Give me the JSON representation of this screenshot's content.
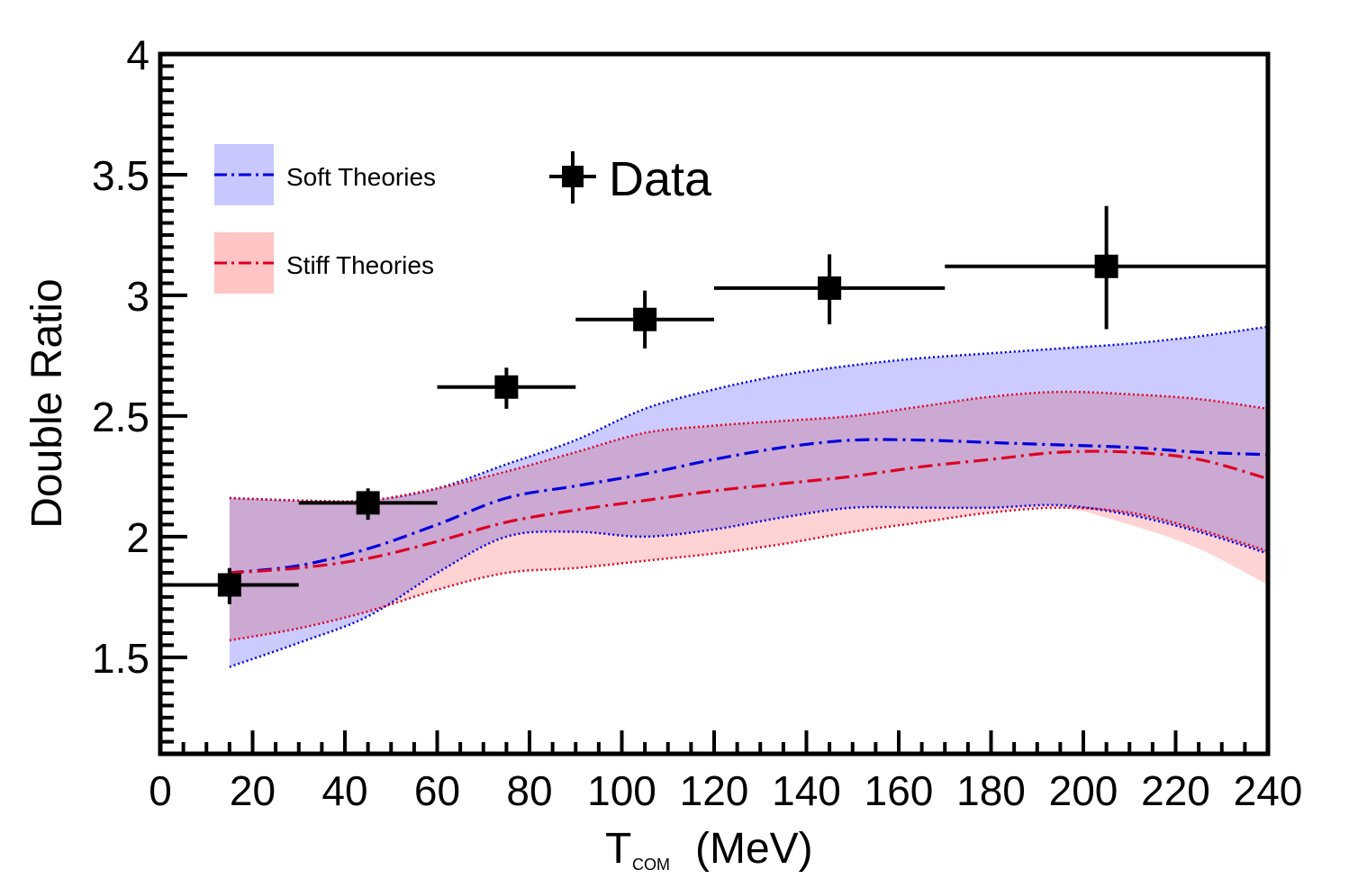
{
  "chart_data": {
    "type": "line",
    "title": "",
    "xlabel_main": "T",
    "xlabel_sub": "COM",
    "xlabel_unit": "(MeV)",
    "ylabel": "Double Ratio",
    "xlim": [
      0,
      240
    ],
    "ylim": [
      1.1,
      4.0
    ],
    "x_ticks": [
      0,
      20,
      40,
      60,
      80,
      100,
      120,
      140,
      160,
      180,
      200,
      220,
      240
    ],
    "y_ticks": [
      1.5,
      2,
      2.5,
      3,
      3.5,
      4
    ],
    "y_tick_labels": [
      "1.5",
      "2",
      "2.5",
      "3",
      "3.5",
      "4"
    ],
    "grid": false,
    "legend": [
      {
        "label": "Soft Theories",
        "color": "#0000dd",
        "band_color": "#c8c8ff"
      },
      {
        "label": "Stiff Theories",
        "color": "#dd0022",
        "band_color": "#ffc4c4"
      },
      {
        "label": "Data",
        "color": "#000000"
      }
    ],
    "data_points": [
      {
        "x": 15,
        "y": 1.8,
        "xerr": [
          0,
          30
        ],
        "yerr": [
          1.72,
          1.87
        ]
      },
      {
        "x": 45,
        "y": 2.14,
        "xerr": [
          30,
          60
        ],
        "yerr": [
          2.07,
          2.2
        ]
      },
      {
        "x": 75,
        "y": 2.62,
        "xerr": [
          60,
          90
        ],
        "yerr": [
          2.53,
          2.7
        ]
      },
      {
        "x": 105,
        "y": 2.9,
        "xerr": [
          90,
          120
        ],
        "yerr": [
          2.78,
          3.02
        ]
      },
      {
        "x": 145,
        "y": 3.03,
        "xerr": [
          120,
          170
        ],
        "yerr": [
          2.88,
          3.17
        ]
      },
      {
        "x": 205,
        "y": 3.12,
        "xerr": [
          170,
          240
        ],
        "yerr": [
          2.86,
          3.37
        ]
      }
    ],
    "series": [
      {
        "name": "Soft Theories",
        "color": "#0000dd",
        "band_color": "#c8c8ff",
        "x": [
          15,
          30,
          45,
          60,
          75,
          90,
          105,
          120,
          135,
          150,
          165,
          180,
          195,
          210,
          225,
          240
        ],
        "central": [
          1.85,
          1.88,
          1.95,
          2.05,
          2.16,
          2.21,
          2.26,
          2.32,
          2.37,
          2.4,
          2.4,
          2.39,
          2.38,
          2.37,
          2.35,
          2.34
        ],
        "upper": [
          2.16,
          2.15,
          2.15,
          2.2,
          2.3,
          2.4,
          2.53,
          2.61,
          2.67,
          2.71,
          2.74,
          2.76,
          2.78,
          2.8,
          2.83,
          2.87
        ],
        "lower": [
          1.46,
          1.56,
          1.67,
          1.85,
          2.0,
          2.02,
          2.0,
          2.03,
          2.08,
          2.12,
          2.12,
          2.12,
          2.13,
          2.09,
          2.02,
          1.93
        ]
      },
      {
        "name": "Stiff Theories",
        "color": "#dd0022",
        "band_color": "#ffc4c4",
        "x": [
          15,
          30,
          45,
          60,
          75,
          90,
          105,
          120,
          135,
          150,
          165,
          180,
          195,
          210,
          225,
          240
        ],
        "central": [
          1.85,
          1.87,
          1.91,
          1.98,
          2.06,
          2.11,
          2.15,
          2.19,
          2.22,
          2.25,
          2.29,
          2.32,
          2.35,
          2.35,
          2.32,
          2.24
        ],
        "upper": [
          2.16,
          2.15,
          2.15,
          2.2,
          2.27,
          2.35,
          2.43,
          2.46,
          2.48,
          2.5,
          2.54,
          2.58,
          2.6,
          2.59,
          2.57,
          2.53
        ],
        "lower": [
          1.57,
          1.62,
          1.69,
          1.78,
          1.85,
          1.87,
          1.9,
          1.93,
          1.97,
          2.02,
          2.06,
          2.1,
          2.12,
          2.1,
          2.03,
          1.94
        ],
        "lower_band_edge": [
          1.57,
          1.62,
          1.69,
          1.78,
          1.85,
          1.87,
          1.9,
          1.93,
          1.97,
          2.02,
          2.06,
          2.1,
          2.12,
          2.05,
          1.95,
          1.8
        ]
      }
    ]
  }
}
